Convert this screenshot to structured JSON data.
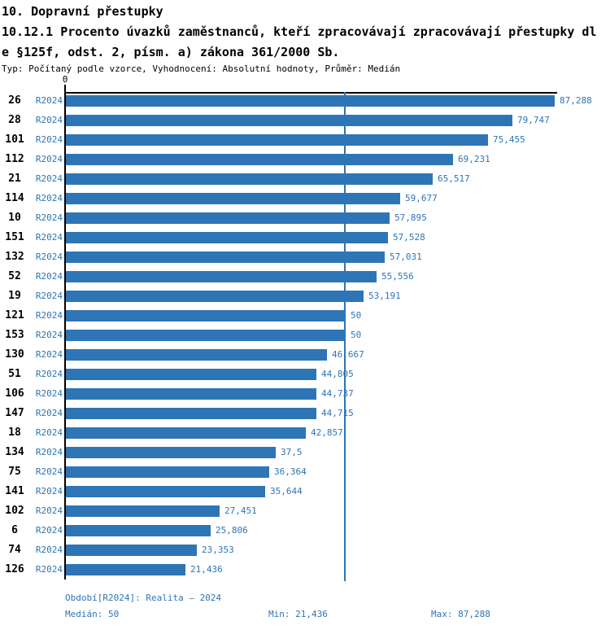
{
  "header": {
    "title": "10. Dopravní přestupky",
    "subtitle_line1": "10.12.1 Procento úvazků zaměstnanců, kteří zpracovávají zpracovávají přestupky dl",
    "subtitle_line2": "e §125f, odst. 2, písm. a) zákona 361/2000 Sb.",
    "meta": "Typ: Počítaný podle vzorce, Vyhodnocení: Absolutní hodnoty, Průměr: Medián"
  },
  "chart_data": {
    "type": "bar",
    "orientation": "horizontal",
    "title": "10.12.1 Procento úvazků zaměstnanců, kteří zpracovávají zpracovávají přestupky dle §125f, odst. 2, písm. a) zákona 361/2000 Sb.",
    "series_label": "R2024",
    "axis_zero_label": "0",
    "xlim": [
      0,
      87.288
    ],
    "median": 50,
    "legend_position": "none",
    "grid": false,
    "categories": [
      "26",
      "28",
      "101",
      "112",
      "21",
      "114",
      "10",
      "151",
      "132",
      "52",
      "19",
      "121",
      "153",
      "130",
      "51",
      "106",
      "147",
      "18",
      "134",
      "75",
      "141",
      "102",
      "6",
      "74",
      "126"
    ],
    "values": [
      87.288,
      79.747,
      75.455,
      69.231,
      65.517,
      59.677,
      57.895,
      57.528,
      57.031,
      55.556,
      53.191,
      50,
      50,
      46.667,
      44.805,
      44.737,
      44.715,
      42.857,
      37.5,
      36.364,
      35.644,
      27.451,
      25.806,
      23.353,
      21.436
    ],
    "value_labels": [
      "87,288",
      "79,747",
      "75,455",
      "69,231",
      "65,517",
      "59,677",
      "57,895",
      "57,528",
      "57,031",
      "55,556",
      "53,191",
      "50",
      "50",
      "46,667",
      "44,805",
      "44,737",
      "44,715",
      "42,857",
      "37,5",
      "36,364",
      "35,644",
      "27,451",
      "25,806",
      "23,353",
      "21,436"
    ],
    "colors": {
      "bar": "#2E75B5",
      "value_label": "#2E75B5",
      "axis": "#000000",
      "median_line": "#2E75B5"
    }
  },
  "footer": {
    "period": "Období[R2024]: Realita – 2024",
    "median": "Medián: 50",
    "min": "Min: 21,436",
    "max": "Max: 87,288"
  }
}
